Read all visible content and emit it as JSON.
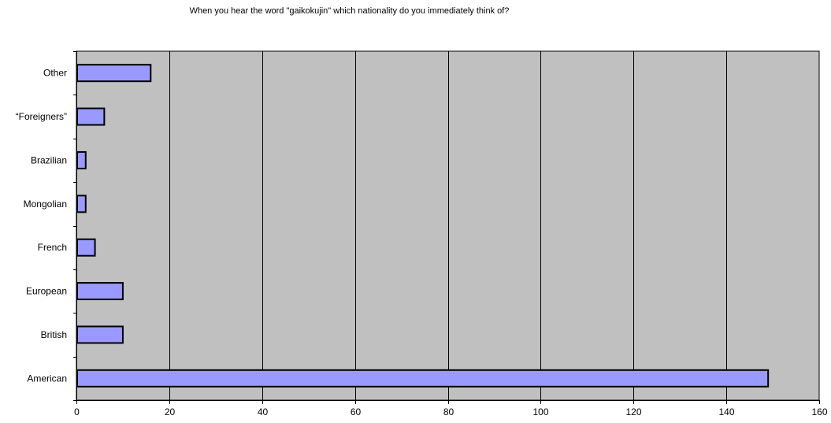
{
  "chart_data": {
    "type": "bar",
    "orientation": "horizontal",
    "title": "When you hear the word \"gaikokujin\" which nationality do you immediately think of?",
    "categories": [
      "American",
      "British",
      "European",
      "French",
      "Mongolian",
      "Brazilian",
      "“Foreigners”",
      "Other"
    ],
    "values": [
      149,
      10,
      10,
      4,
      2,
      2,
      6,
      16
    ],
    "xlim": [
      0,
      160
    ],
    "xticks": [
      0,
      20,
      40,
      60,
      80,
      100,
      120,
      140,
      160
    ],
    "xlabel": "",
    "ylabel": "",
    "grid": "vertical",
    "legend": "none",
    "colors": {
      "bar_fill": "#9999ff",
      "bar_stroke": "#000000",
      "plot_background": "#c0c0c0",
      "grid": "#000000"
    }
  }
}
